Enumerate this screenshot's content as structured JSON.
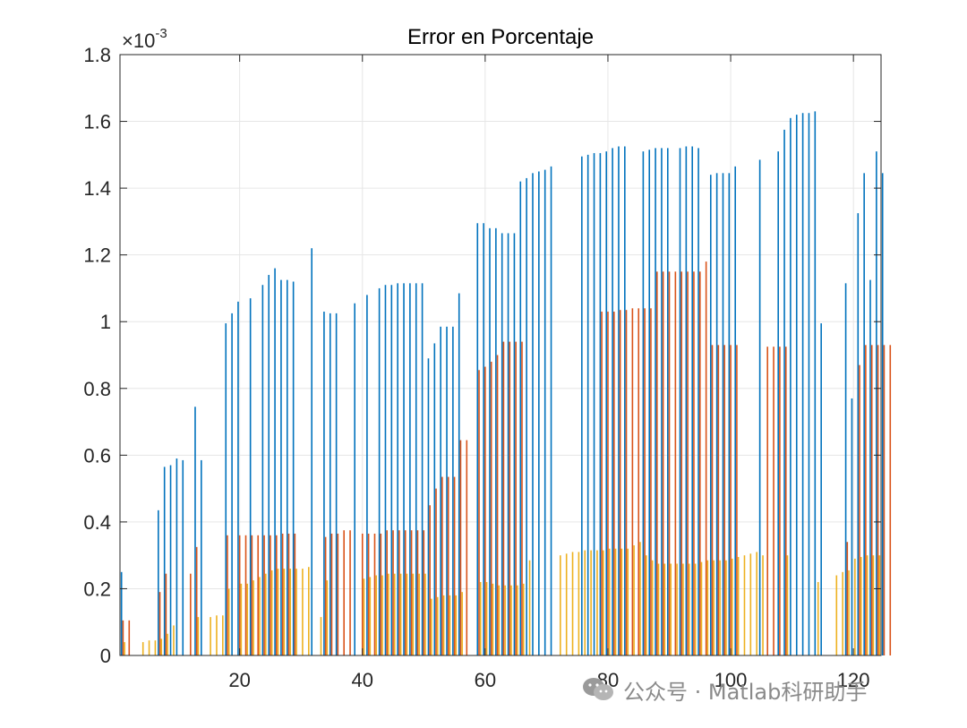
{
  "chart_data": {
    "type": "bar",
    "title": "Error en Porcentaje",
    "xlabel": "",
    "ylabel": "",
    "y_exponent": {
      "base": "×10",
      "power": "-3"
    },
    "xlim": [
      0.5,
      124.5
    ],
    "ylim": [
      0,
      1.8
    ],
    "x_ticks": [
      20,
      40,
      60,
      80,
      100,
      120
    ],
    "y_ticks": [
      0,
      0.2,
      0.4,
      0.6,
      0.8,
      1,
      1.2,
      1.4,
      1.6,
      1.8
    ],
    "y_tick_labels": [
      "0",
      "0.2",
      "0.4",
      "0.6",
      "0.8",
      "1",
      "1.2",
      "1.4",
      "1.6",
      "1.8"
    ],
    "grid": true,
    "legend": "none",
    "series_colors": [
      "#0072BD",
      "#D95319",
      "#EDB120"
    ],
    "series": [
      {
        "values": [
          0.25,
          0,
          0,
          0,
          0,
          0,
          0.435,
          0.565,
          0.57,
          0.59,
          0.585,
          0,
          0.745,
          0.585,
          0,
          0,
          0,
          0.995,
          1.025,
          1.06,
          0,
          1.07,
          0,
          1.11,
          1.14,
          1.16,
          1.125,
          1.125,
          1.12,
          0,
          0,
          1.22,
          0,
          1.03,
          1.025,
          1.025,
          0,
          0,
          1.055,
          0,
          1.08,
          0,
          1.1,
          1.11,
          1.11,
          1.115,
          1.115,
          1.115,
          1.115,
          1.115,
          0.89,
          0.935,
          0.985,
          0.985,
          0.985,
          1.085,
          0,
          0,
          1.295,
          1.295,
          1.28,
          1.28,
          1.265,
          1.265,
          1.265,
          1.42,
          1.43,
          1.445,
          1.45,
          1.455,
          1.465,
          0,
          0,
          0,
          0,
          1.495,
          1.5,
          1.505,
          1.505,
          1.51,
          1.52,
          1.525,
          1.525,
          0,
          0,
          1.51,
          1.515,
          1.52,
          1.52,
          1.52,
          0,
          1.52,
          1.525,
          1.525,
          1.52,
          0,
          1.44,
          1.445,
          1.445,
          1.445,
          1.465,
          0,
          0,
          0,
          1.485,
          0,
          0,
          1.51,
          1.575,
          1.61,
          1.62,
          1.625,
          1.625,
          1.63,
          0.995,
          0,
          0,
          0,
          1.115,
          0.77,
          1.325,
          1.445,
          1.125,
          1.51,
          1.445
        ],
        "name": ""
      },
      {
        "values": [
          0.105,
          0.105,
          0,
          0,
          0,
          0,
          0.19,
          0.245,
          0,
          0,
          0,
          0.245,
          0.325,
          0,
          0,
          0,
          0,
          0.36,
          0,
          0.36,
          0.36,
          0.36,
          0.36,
          0.36,
          0.36,
          0.36,
          0.365,
          0.365,
          0.365,
          0,
          0,
          0,
          0,
          0.355,
          0.365,
          0.365,
          0.375,
          0.375,
          0,
          0.365,
          0.365,
          0.365,
          0.365,
          0.375,
          0.375,
          0.375,
          0.375,
          0.375,
          0.375,
          0.375,
          0.45,
          0.5,
          0.535,
          0.535,
          0.535,
          0.645,
          0.645,
          0,
          0.855,
          0.865,
          0.88,
          0.9,
          0.94,
          0.94,
          0.94,
          0.94,
          0,
          0,
          0,
          0,
          0,
          0,
          0,
          0,
          0,
          0,
          0,
          0,
          1.03,
          1.03,
          1.03,
          1.035,
          1.035,
          1.04,
          1.04,
          1.04,
          1.04,
          1.15,
          1.15,
          1.15,
          1.15,
          1.15,
          1.15,
          1.15,
          1.15,
          1.18,
          0.93,
          0.93,
          0.93,
          0.93,
          0.93,
          0,
          0,
          0,
          0,
          0.925,
          0.925,
          0.925,
          0.925,
          0,
          0,
          0,
          0,
          0,
          0,
          0,
          0,
          0,
          0.34,
          0,
          0.87,
          0.93,
          0.93,
          0.93,
          0.93,
          0.93
        ],
        "name": ""
      },
      {
        "values": [
          0.04,
          0,
          0,
          0.04,
          0.045,
          0.045,
          0.05,
          0.065,
          0.09,
          0,
          0,
          0,
          0.115,
          0,
          0.115,
          0.12,
          0.12,
          0.2,
          0,
          0.215,
          0.215,
          0.225,
          0.235,
          0.245,
          0.255,
          0.26,
          0.26,
          0.26,
          0.26,
          0.26,
          0.265,
          0,
          0.115,
          0.225,
          0,
          0,
          0,
          0,
          0,
          0.23,
          0.235,
          0.24,
          0.24,
          0.245,
          0.245,
          0.245,
          0.245,
          0.245,
          0.245,
          0.245,
          0.17,
          0.175,
          0.18,
          0.18,
          0.18,
          0.19,
          0,
          0,
          0.22,
          0.22,
          0.215,
          0.21,
          0.21,
          0.21,
          0.21,
          0.215,
          0.285,
          0,
          0,
          0,
          0,
          0.3,
          0.305,
          0.31,
          0.31,
          0.315,
          0.315,
          0.315,
          0.315,
          0.32,
          0.32,
          0.32,
          0.32,
          0.33,
          0.34,
          0.3,
          0.285,
          0.275,
          0.275,
          0.275,
          0.275,
          0.275,
          0.275,
          0.275,
          0.28,
          0.285,
          0.285,
          0.285,
          0.285,
          0.29,
          0.295,
          0.3,
          0.305,
          0.31,
          0.3,
          0,
          0,
          0,
          0.3,
          0,
          0,
          0,
          0,
          0.22,
          0,
          0,
          0.24,
          0.25,
          0.255,
          0.29,
          0.295,
          0.3,
          0.3,
          0.3
        ],
        "name": ""
      }
    ]
  },
  "watermark": {
    "icon": "wechat-icon",
    "text": "公众号 · Matlab科研助手"
  }
}
